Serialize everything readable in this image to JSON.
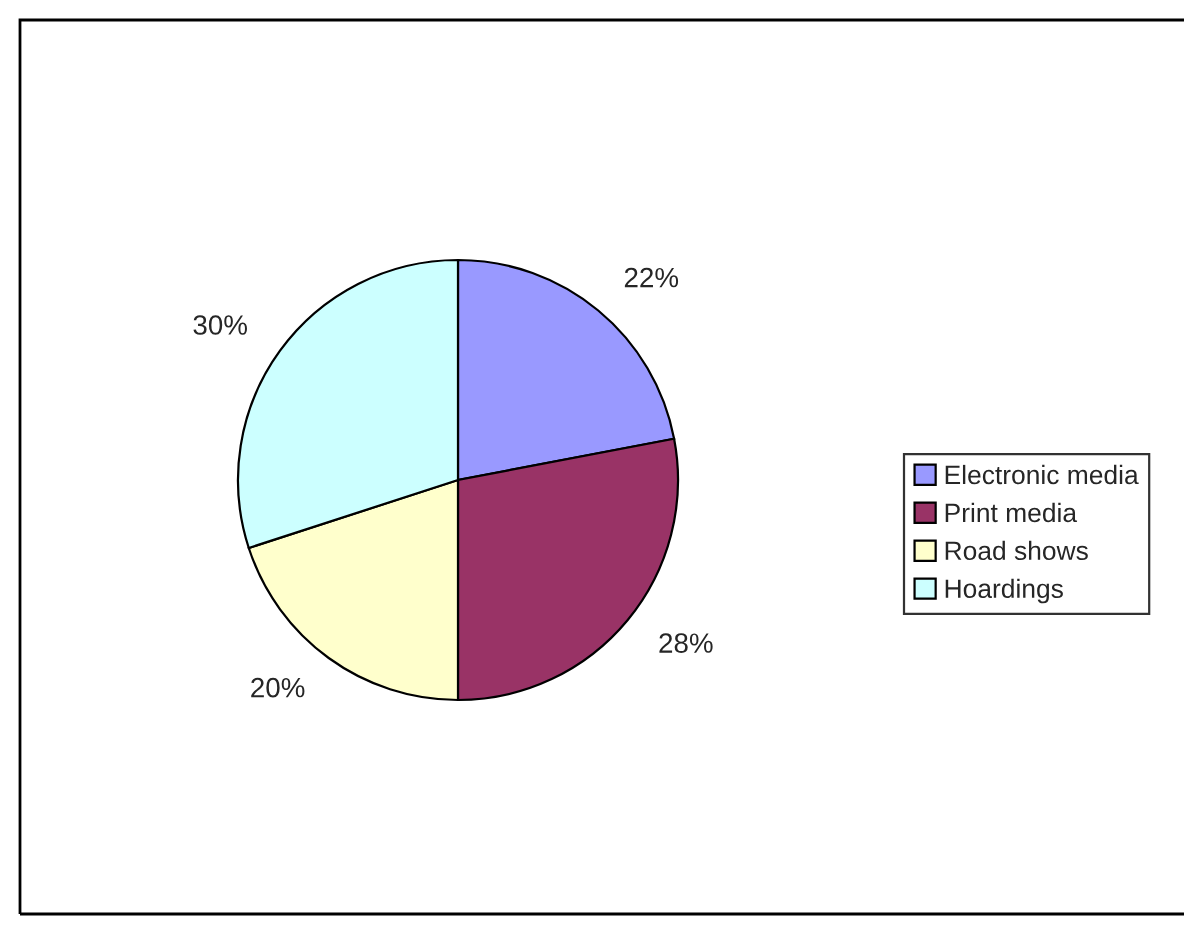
{
  "chart_data": {
    "type": "pie",
    "categories": [
      "Electronic media",
      "Print media",
      "Road shows",
      "Hoardings"
    ],
    "values": [
      22,
      28,
      20,
      30
    ],
    "colors": [
      "#9999ff",
      "#993366",
      "#ffffcc",
      "#ccffff"
    ],
    "value_labels": [
      "22%",
      "28%",
      "20%",
      "30%"
    ],
    "legend": "right"
  }
}
